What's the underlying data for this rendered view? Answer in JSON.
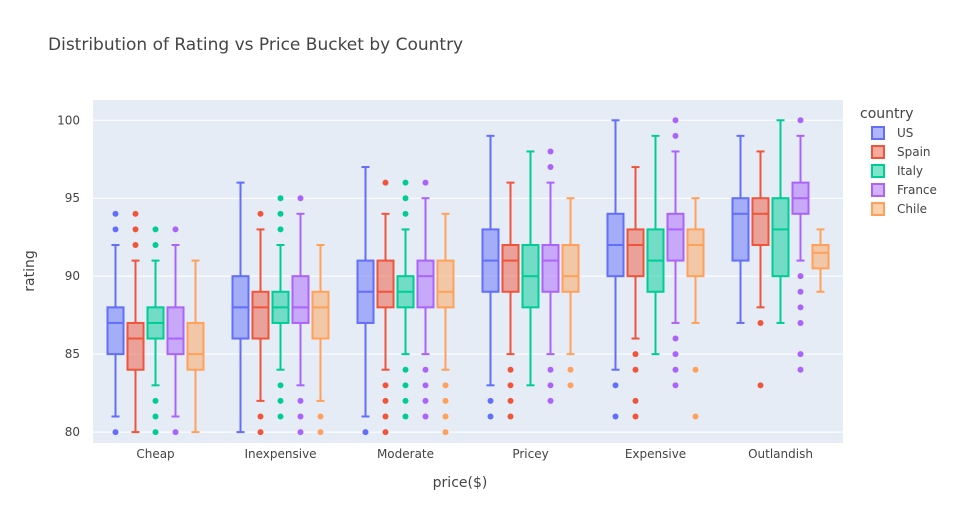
{
  "chart_data": {
    "type": "box",
    "title": "Distribution of Rating vs Price Bucket by Country",
    "xlabel": "price($)",
    "ylabel": "rating",
    "ylim": [
      79.3,
      101.3
    ],
    "yticks": [
      80,
      85,
      90,
      95,
      100
    ],
    "categories": [
      "Cheap",
      "Inexpensive",
      "Moderate",
      "Pricey",
      "Expensive",
      "Outlandish"
    ],
    "grid": true,
    "legend": {
      "title": "country",
      "position": "right"
    },
    "series": [
      {
        "name": "US",
        "color": "#636efa",
        "boxes": [
          {
            "min": 81,
            "q1": 85,
            "median": 87,
            "q3": 88,
            "max": 92,
            "outliers": [
              80,
              93,
              94
            ]
          },
          {
            "min": 80,
            "q1": 86,
            "median": 88,
            "q3": 90,
            "max": 96,
            "outliers": []
          },
          {
            "min": 81,
            "q1": 87,
            "median": 89,
            "q3": 91,
            "max": 97,
            "outliers": [
              80
            ]
          },
          {
            "min": 83,
            "q1": 89,
            "median": 91,
            "q3": 93,
            "max": 99,
            "outliers": [
              81,
              82
            ]
          },
          {
            "min": 84,
            "q1": 90,
            "median": 92,
            "q3": 94,
            "max": 100,
            "outliers": [
              81,
              83
            ]
          },
          {
            "min": 87,
            "q1": 91,
            "median": 94,
            "q3": 95,
            "max": 99,
            "outliers": []
          }
        ]
      },
      {
        "name": "Spain",
        "color": "#ef553b",
        "boxes": [
          {
            "min": 80,
            "q1": 84,
            "median": 86,
            "q3": 87,
            "max": 91,
            "outliers": [
              92,
              93,
              94
            ]
          },
          {
            "min": 82,
            "q1": 86,
            "median": 88,
            "q3": 89,
            "max": 93,
            "outliers": [
              80,
              81,
              94
            ]
          },
          {
            "min": 84,
            "q1": 88,
            "median": 89,
            "q3": 91,
            "max": 94,
            "outliers": [
              80,
              81,
              82,
              83,
              96
            ]
          },
          {
            "min": 85,
            "q1": 89,
            "median": 91,
            "q3": 92,
            "max": 96,
            "outliers": [
              81,
              82,
              83,
              84
            ]
          },
          {
            "min": 86,
            "q1": 90,
            "median": 92,
            "q3": 93,
            "max": 97,
            "outliers": [
              81,
              82,
              84,
              85
            ]
          },
          {
            "min": 88,
            "q1": 92,
            "median": 94,
            "q3": 95,
            "max": 98,
            "outliers": [
              83,
              87
            ]
          }
        ]
      },
      {
        "name": "Italy",
        "color": "#00cc96",
        "boxes": [
          {
            "min": 83,
            "q1": 86,
            "median": 87,
            "q3": 88,
            "max": 91,
            "outliers": [
              80,
              81,
              82,
              92,
              93
            ]
          },
          {
            "min": 84,
            "q1": 87,
            "median": 88,
            "q3": 89,
            "max": 92,
            "outliers": [
              81,
              82,
              83,
              93,
              94,
              95
            ]
          },
          {
            "min": 85,
            "q1": 88,
            "median": 89,
            "q3": 90,
            "max": 93,
            "outliers": [
              81,
              82,
              83,
              84,
              94,
              95,
              96
            ]
          },
          {
            "min": 83,
            "q1": 88,
            "median": 90,
            "q3": 92,
            "max": 98,
            "outliers": []
          },
          {
            "min": 85,
            "q1": 89,
            "median": 91,
            "q3": 93,
            "max": 99,
            "outliers": []
          },
          {
            "min": 87,
            "q1": 90,
            "median": 93,
            "q3": 95,
            "max": 100,
            "outliers": []
          }
        ]
      },
      {
        "name": "France",
        "color": "#ab63fa",
        "boxes": [
          {
            "min": 81,
            "q1": 85,
            "median": 86,
            "q3": 88,
            "max": 92,
            "outliers": [
              80,
              93
            ]
          },
          {
            "min": 83,
            "q1": 87,
            "median": 88,
            "q3": 90,
            "max": 94,
            "outliers": [
              80,
              81,
              82,
              95
            ]
          },
          {
            "min": 85,
            "q1": 88,
            "median": 90,
            "q3": 91,
            "max": 95,
            "outliers": [
              81,
              82,
              83,
              84,
              96
            ]
          },
          {
            "min": 85,
            "q1": 89,
            "median": 91,
            "q3": 92,
            "max": 96,
            "outliers": [
              82,
              83,
              84,
              97,
              98
            ]
          },
          {
            "min": 87,
            "q1": 91,
            "median": 93,
            "q3": 94,
            "max": 98,
            "outliers": [
              83,
              84,
              85,
              86,
              99,
              100
            ]
          },
          {
            "min": 91,
            "q1": 94,
            "median": 95,
            "q3": 96,
            "max": 99,
            "outliers": [
              84,
              85,
              87,
              88,
              89,
              90,
              100
            ]
          }
        ]
      },
      {
        "name": "Chile",
        "color": "#ffa15a",
        "boxes": [
          {
            "min": 80,
            "q1": 84,
            "median": 85,
            "q3": 87,
            "max": 91,
            "outliers": []
          },
          {
            "min": 82,
            "q1": 86,
            "median": 88,
            "q3": 89,
            "max": 92,
            "outliers": [
              80,
              81
            ]
          },
          {
            "min": 84,
            "q1": 88,
            "median": 89,
            "q3": 91,
            "max": 94,
            "outliers": [
              80,
              81,
              82,
              83
            ]
          },
          {
            "min": 85,
            "q1": 89,
            "median": 90,
            "q3": 92,
            "max": 95,
            "outliers": [
              83,
              84
            ]
          },
          {
            "min": 87,
            "q1": 90,
            "median": 92,
            "q3": 93,
            "max": 95,
            "outliers": [
              81,
              84
            ]
          },
          {
            "min": 89,
            "q1": 90.5,
            "median": 91.5,
            "q3": 92,
            "max": 93,
            "outliers": []
          }
        ]
      }
    ]
  }
}
